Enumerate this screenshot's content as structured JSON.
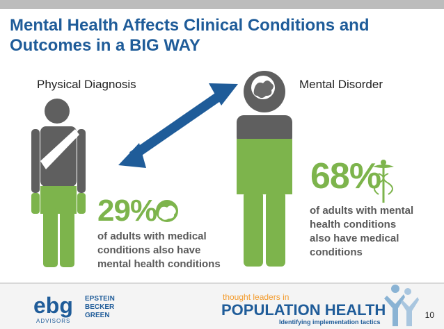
{
  "slide": {
    "title_line1": "Mental Health Affects Clinical Conditions and",
    "title_line2": "Outcomes in a BIG WAY",
    "left_label": "Physical Diagnosis",
    "right_label": "Mental Disorder",
    "left_stat": "29%",
    "left_desc": [
      "of adults with medical",
      "conditions also have",
      "mental health conditions"
    ],
    "right_stat": "68%",
    "right_desc": [
      "of adults with mental",
      "health conditions",
      "also have medical",
      "conditions"
    ],
    "page_number": "10"
  },
  "footer": {
    "logo_text": "ebg",
    "logo_sub": "ADVISORS",
    "firm_lines": [
      "EPSTEIN",
      "BECKER",
      "GREEN"
    ],
    "tagline": "thought leaders in",
    "headline": "POPULATION HEALTH",
    "subline": "Identifying implementation tactics"
  },
  "colors": {
    "title": "#1f5c99",
    "green": "#7db44c",
    "gray_figure": "#5f5f5f",
    "arrow": "#1f5c99"
  },
  "icons": [
    "brain-icon",
    "caduceus-icon",
    "double-arrow-icon",
    "people-silhouette-icon"
  ]
}
